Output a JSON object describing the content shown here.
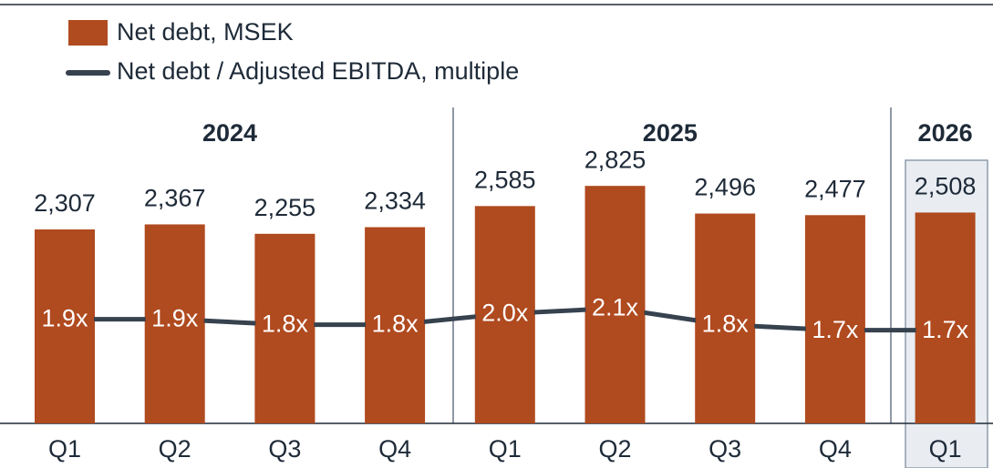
{
  "chart_data": {
    "type": "bar",
    "legend": [
      "Net debt, MSEK",
      "Net debt / Adjusted EBITDA, multiple"
    ],
    "year_labels": [
      "2024",
      "2025",
      "2026"
    ],
    "categories": [
      "Q1",
      "Q2",
      "Q3",
      "Q4",
      "Q1",
      "Q2",
      "Q3",
      "Q4",
      "Q1"
    ],
    "series": [
      {
        "name": "Net debt, MSEK",
        "type": "bar",
        "color": "#b04a1f",
        "values": [
          2307,
          2367,
          2255,
          2334,
          2585,
          2825,
          2496,
          2477,
          2508
        ],
        "value_labels": [
          "2,307",
          "2,367",
          "2,255",
          "2,334",
          "2,585",
          "2,825",
          "2,496",
          "2,477",
          "2,508"
        ]
      },
      {
        "name": "Net debt / Adjusted EBITDA, multiple",
        "type": "line",
        "axis": "y2",
        "color": "#37424f",
        "values": [
          1.9,
          1.9,
          1.8,
          1.8,
          2.0,
          2.1,
          1.8,
          1.7,
          1.7
        ],
        "value_labels": [
          "1.9x",
          "1.9x",
          "1.8x",
          "1.8x",
          "2.0x",
          "2.1x",
          "1.8x",
          "1.7x",
          "1.7x"
        ]
      }
    ],
    "ylim": [
      0,
      3000
    ],
    "y2lim": [
      0,
      4.6
    ]
  }
}
